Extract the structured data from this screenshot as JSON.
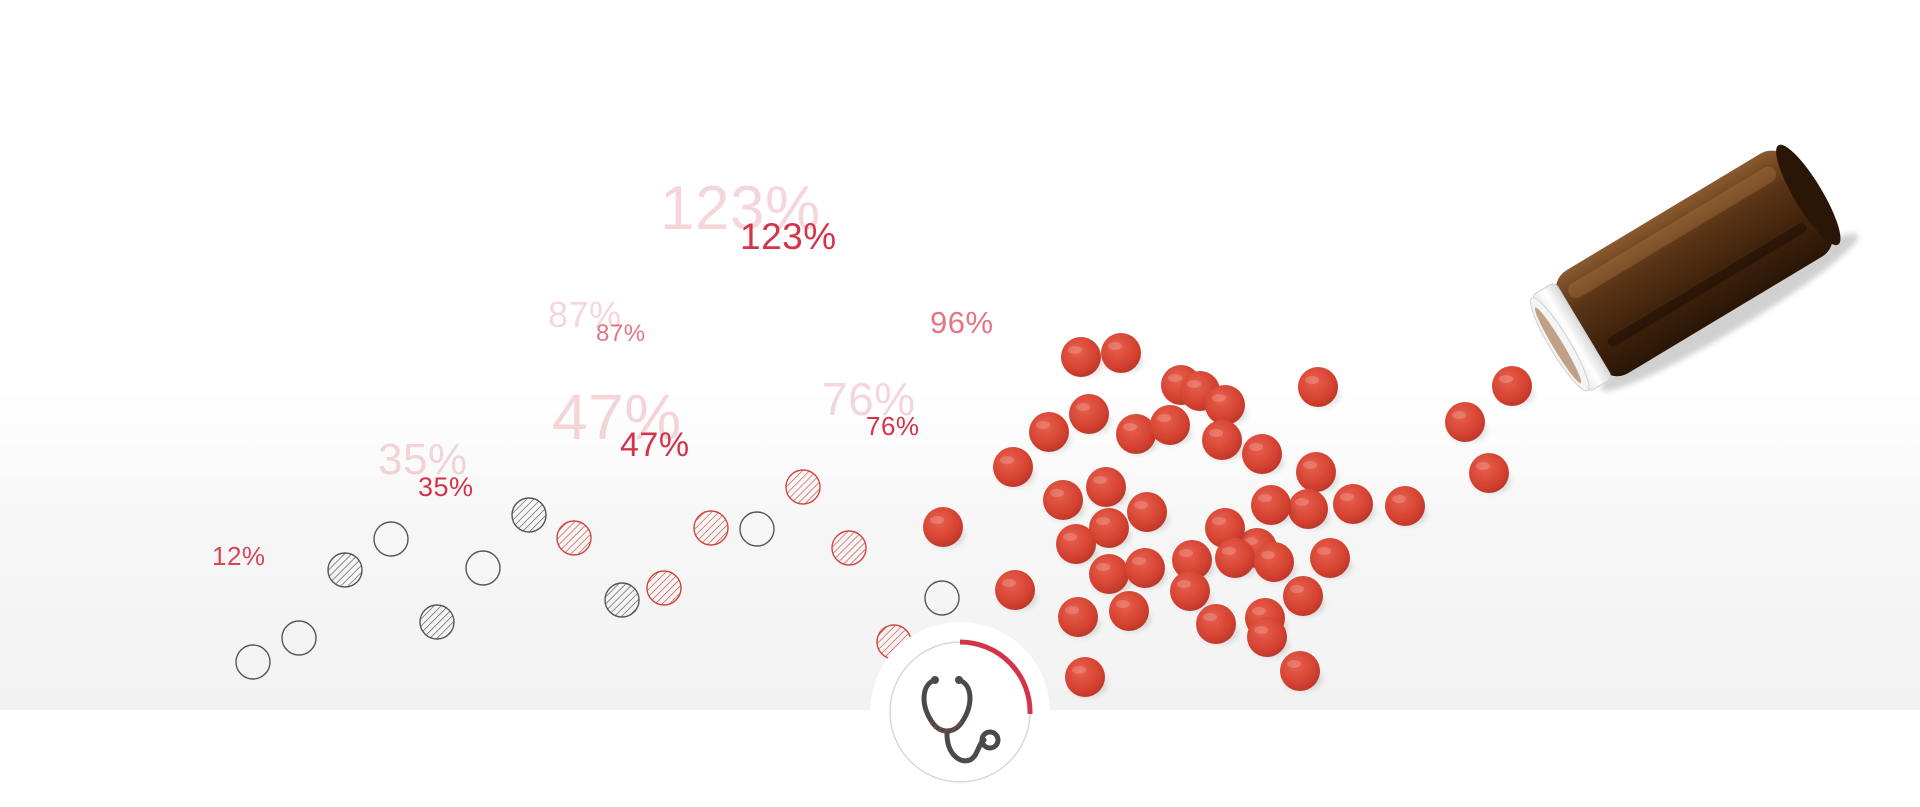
{
  "hero": {
    "percentages": [
      {
        "id": "p12",
        "value": "12%"
      },
      {
        "id": "p35",
        "value": "35%"
      },
      {
        "id": "p47",
        "value": "47%"
      },
      {
        "id": "p87",
        "value": "87%"
      },
      {
        "id": "p123",
        "value": "123%"
      },
      {
        "id": "p76",
        "value": "76%"
      },
      {
        "id": "p96",
        "value": "96%"
      }
    ]
  },
  "colors": {
    "accent": "#d3344a",
    "pill": "#d7453a",
    "bottle_glass": "#4a2a12",
    "outline": "#555555"
  },
  "icons": {
    "badge": "stethoscope-icon"
  }
}
